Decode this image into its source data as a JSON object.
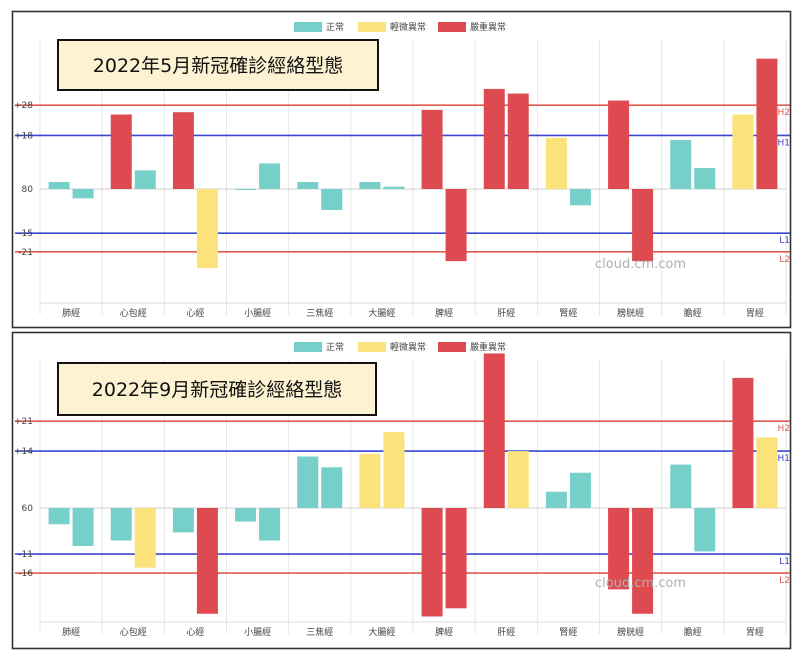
{
  "legend": [
    {
      "label": "正常",
      "color": "#76cfc8"
    },
    {
      "label": "輕微異常",
      "color": "#fbe27a"
    },
    {
      "label": "嚴重異常",
      "color": "#dd4a50"
    }
  ],
  "watermark": "cloud.cm.com",
  "chart_data": [
    {
      "type": "bar",
      "title": "2022年5月新冠確診經絡型態",
      "categories": [
        "肺經",
        "心包經",
        "心經",
        "小腸經",
        "三焦經",
        "大腸經",
        "脾經",
        "肝經",
        "腎經",
        "膀胱經",
        "膽經",
        "胃經"
      ],
      "series": [
        {
          "values": [
            3,
            32,
            33,
            0,
            3,
            3,
            34,
            43,
            22,
            38,
            21,
            32
          ]
        },
        {
          "values": [
            -4,
            8,
            -34,
            11,
            -9,
            1,
            -31,
            41,
            -7,
            -31,
            9,
            56
          ]
        }
      ],
      "statuses": [
        [
          "normal",
          "severe",
          "severe",
          "normal",
          "normal",
          "normal",
          "severe",
          "severe",
          "mild",
          "severe",
          "normal",
          "mild"
        ],
        [
          "normal",
          "normal",
          "mild",
          "normal",
          "normal",
          "normal",
          "severe",
          "severe",
          "normal",
          "severe",
          "normal",
          "severe"
        ]
      ],
      "baseline_label": "80",
      "reference_lines": [
        {
          "name": "H2",
          "tick": "+28",
          "value": 36,
          "color": "#e05a4f"
        },
        {
          "name": "H1",
          "tick": "+18",
          "value": 23,
          "color": "#3a47d0"
        },
        {
          "name": "L1",
          "tick": "-15",
          "value": -19,
          "color": "#3a47d0"
        },
        {
          "name": "L2",
          "tick": "-21",
          "value": -27,
          "color": "#e05a4f"
        }
      ],
      "ylim": [
        -50,
        63
      ]
    },
    {
      "type": "bar",
      "title": "2022年9月新冠確診經絡型態",
      "categories": [
        "肺經",
        "心包經",
        "心經",
        "小腸經",
        "三焦經",
        "大腸經",
        "脾經",
        "肝經",
        "腎經",
        "膀胱經",
        "膽經",
        "胃經"
      ],
      "series": [
        {
          "values": [
            -6,
            -12,
            -9,
            -5,
            19,
            20,
            -40,
            57,
            6,
            -30,
            16,
            48
          ]
        },
        {
          "values": [
            -14,
            -22,
            -39,
            -12,
            15,
            28,
            -37,
            21,
            13,
            -39,
            -16,
            26
          ]
        }
      ],
      "statuses": [
        [
          "normal",
          "normal",
          "normal",
          "normal",
          "normal",
          "mild",
          "severe",
          "severe",
          "normal",
          "severe",
          "normal",
          "severe"
        ],
        [
          "normal",
          "mild",
          "severe",
          "normal",
          "normal",
          "mild",
          "severe",
          "mild",
          "normal",
          "severe",
          "normal",
          "mild"
        ]
      ],
      "baseline_label": "60",
      "reference_lines": [
        {
          "name": "H2",
          "tick": "+21",
          "value": 32,
          "color": "#e05a4f"
        },
        {
          "name": "H1",
          "tick": "+14",
          "value": 21,
          "color": "#3a47d0"
        },
        {
          "name": "L1",
          "tick": "-11",
          "value": -17,
          "color": "#3a47d0"
        },
        {
          "name": "L2",
          "tick": "-16",
          "value": -24,
          "color": "#e05a4f"
        }
      ],
      "ylim": [
        -40,
        57
      ]
    }
  ]
}
